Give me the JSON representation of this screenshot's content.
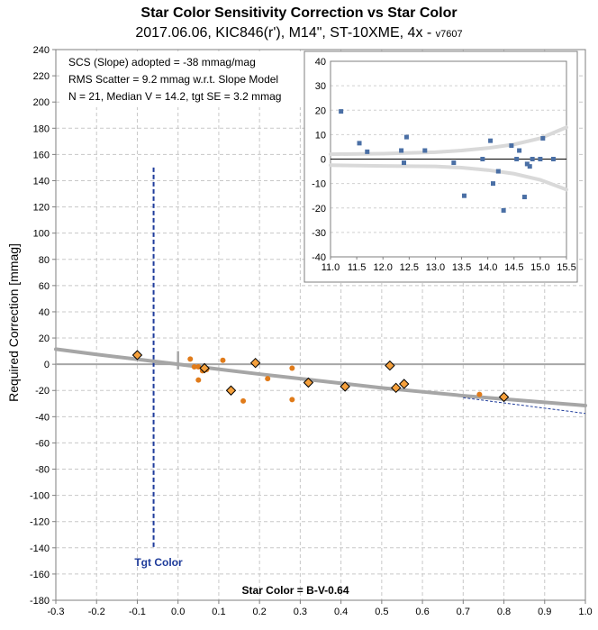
{
  "chart_data": [
    {
      "type": "scatter",
      "title": "Star Color Sensitivity Correction vs Star Color",
      "subtitle": "2017.06.06, KIC846(r'), M14\", ST-10XME, 4x -",
      "version": "v7607",
      "xlabel": "Star Color = B-V-0.64",
      "ylabel": "Required Correction [mmag]",
      "xlim": [
        -0.3,
        1.0
      ],
      "ylim": [
        -180,
        240
      ],
      "x_ticks": [
        "-0.3",
        "-0.2",
        "-0.1",
        "0.0",
        "0.1",
        "0.2",
        "0.3",
        "0.4",
        "0.5",
        "0.6",
        "0.7",
        "0.8",
        "0.9",
        "1.0"
      ],
      "y_ticks": [
        "240",
        "220",
        "200",
        "180",
        "160",
        "140",
        "120",
        "100",
        "80",
        "60",
        "40",
        "20",
        "0",
        "-20",
        "-40",
        "-60",
        "-80",
        "-100",
        "-120",
        "-140",
        "-160",
        "-180"
      ],
      "grid": true,
      "annotations": [
        "SCS (Slope) adopted  =  -38 mmag/mag",
        "RMS Scatter = 9.2 mmag w.r.t. Slope Model",
        "N = 21,  Median V = 14.2, tgt SE = 3.2 mmag"
      ],
      "target_label": "Tgt Color",
      "target_x": -0.06,
      "target_line_ylim": [
        -140,
        150
      ],
      "colors": {
        "stars": "#e07b1a",
        "diamonds": "#f5a03c",
        "model": "#a6a6a6",
        "target": "#1f3c9b",
        "zero": "#a6a6a6",
        "extrap": "#1f3c9b"
      },
      "series": [
        {
          "kind": "stars",
          "x": [
            0.03,
            0.04,
            0.05,
            0.06,
            0.07,
            0.05,
            0.11,
            0.16,
            0.22,
            0.28,
            0.28,
            0.74
          ],
          "y": [
            4,
            -2,
            -12,
            -5,
            -4,
            -2,
            3,
            -28,
            -11,
            -3,
            -27,
            -23
          ]
        },
        {
          "kind": "diamonds",
          "x": [
            -0.1,
            0.065,
            0.13,
            0.19,
            0.32,
            0.41,
            0.52,
            0.535,
            0.555,
            0.8
          ],
          "y": [
            7,
            -3,
            -20,
            1,
            -14,
            -17,
            -1,
            -18,
            -15,
            -25
          ]
        },
        {
          "kind": "model",
          "x": [
            -0.3,
            -0.2,
            -0.1,
            0.0,
            0.1,
            0.2,
            0.3,
            0.4,
            0.5,
            0.6,
            0.7,
            0.8,
            0.9,
            1.0
          ],
          "y": [
            11.5,
            7.5,
            3.8,
            0,
            -3.8,
            -7.5,
            -11,
            -14.5,
            -18,
            -21,
            -24,
            -26.5,
            -29,
            -31.5
          ]
        },
        {
          "kind": "extrapolation",
          "x": [
            0.7,
            0.8,
            0.9,
            1.0
          ],
          "y": [
            -25.5,
            -29.5,
            -33.5,
            -37.5
          ]
        }
      ]
    },
    {
      "type": "scatter",
      "inset": true,
      "xlim": [
        11.0,
        15.5
      ],
      "ylim": [
        -40,
        40
      ],
      "x_ticks": [
        "11.0",
        "11.5",
        "12.0",
        "12.5",
        "13.0",
        "13.5",
        "14.0",
        "14.5",
        "15.0",
        "15.5"
      ],
      "y_ticks": [
        "40",
        "30",
        "20",
        "10",
        "0",
        "-10",
        "-20",
        "-30",
        "-40"
      ],
      "colors": {
        "points": "#4a6fa5",
        "envelope": "#d9d9d9"
      },
      "points": {
        "x": [
          11.2,
          11.55,
          11.7,
          12.35,
          12.45,
          12.4,
          12.8,
          13.35,
          13.55,
          13.9,
          14.05,
          14.1,
          14.2,
          14.3,
          14.45,
          14.55,
          14.6,
          14.7,
          14.75,
          14.8,
          14.85,
          15.0,
          15.05,
          15.25
        ],
        "y": [
          19.5,
          6.5,
          3,
          3.5,
          9,
          -1.5,
          3.5,
          -1.5,
          -15,
          0,
          7.5,
          -10,
          -5,
          -21,
          5.5,
          0,
          3.5,
          -15.5,
          -2,
          -3,
          0,
          0,
          8.5,
          0
        ]
      },
      "envelope_upper": {
        "x": [
          11.0,
          12.0,
          13.0,
          13.5,
          14.0,
          14.5,
          15.0,
          15.5
        ],
        "y": [
          2,
          2.2,
          2.8,
          3.5,
          4.5,
          6,
          8.5,
          13
        ]
      },
      "envelope_lower": {
        "x": [
          11.0,
          12.0,
          13.0,
          13.5,
          14.0,
          14.5,
          15.0,
          15.5
        ],
        "y": [
          -2.5,
          -2.8,
          -3,
          -3.5,
          -4.5,
          -6,
          -8.5,
          -12.5
        ]
      }
    }
  ]
}
